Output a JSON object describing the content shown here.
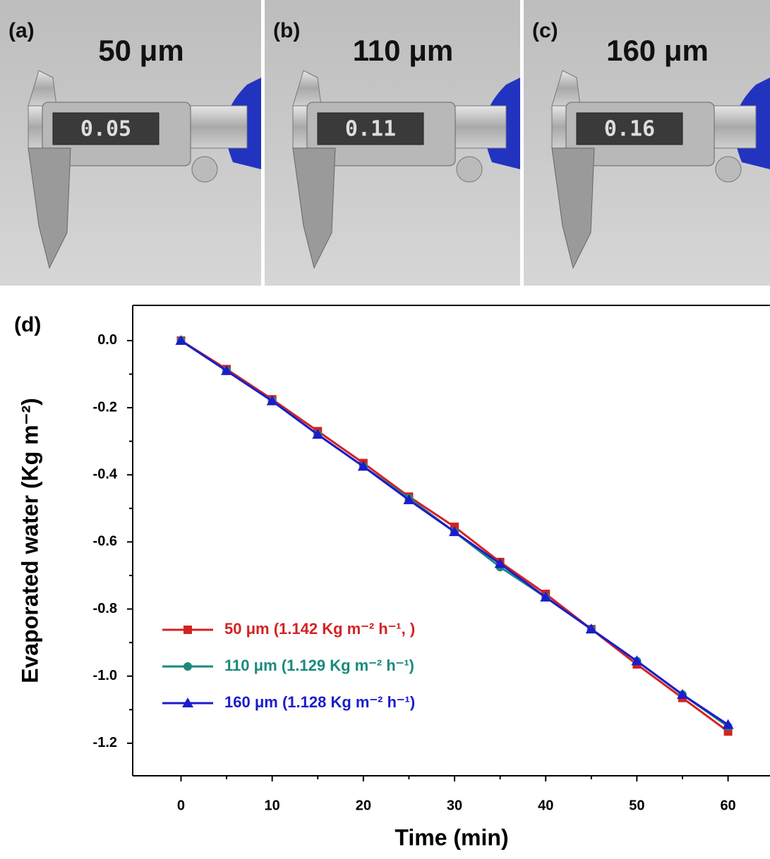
{
  "panels": [
    {
      "label": "(a)",
      "thickness": "50 μm",
      "display": "0.05"
    },
    {
      "label": "(b)",
      "thickness": "110 μm",
      "display": "0.11"
    },
    {
      "label": "(c)",
      "thickness": "160 μm",
      "display": "0.16"
    }
  ],
  "chart_data": {
    "type": "line",
    "panel_label": "(d)",
    "x_label": "Time (min)",
    "y_label": "Evaporated water (Kg m⁻²)",
    "x": [
      0,
      5,
      10,
      15,
      20,
      25,
      30,
      35,
      40,
      45,
      50,
      55,
      60
    ],
    "series": [
      {
        "name": "50 μm (1.142 Kg m⁻² h⁻¹, )",
        "color": "#d42222",
        "marker": "square",
        "values": [
          0,
          -0.085,
          -0.175,
          -0.27,
          -0.365,
          -0.465,
          -0.555,
          -0.66,
          -0.755,
          -0.86,
          -0.965,
          -1.065,
          -1.165
        ]
      },
      {
        "name": "110 μm (1.129 Kg m⁻² h⁻¹)",
        "color": "#1b8a7c",
        "marker": "circle",
        "values": [
          0,
          -0.09,
          -0.18,
          -0.28,
          -0.375,
          -0.47,
          -0.57,
          -0.675,
          -0.765,
          -0.86,
          -0.955,
          -1.055,
          -1.15
        ]
      },
      {
        "name": "160 μm (1.128 Kg m⁻² h⁻¹)",
        "color": "#1c1ccc",
        "marker": "triangle",
        "values": [
          0,
          -0.09,
          -0.18,
          -0.28,
          -0.375,
          -0.475,
          -0.57,
          -0.665,
          -0.765,
          -0.86,
          -0.955,
          -1.055,
          -1.145
        ]
      }
    ],
    "xlim": [
      -5.3,
      64.6
    ],
    "xticks": [
      0,
      10,
      20,
      30,
      40,
      50,
      60
    ],
    "ylim": [
      -1.297,
      0.105
    ],
    "yticks": [
      {
        "value": 0,
        "label": "0.0"
      },
      -0.2,
      -0.4,
      -0.6,
      -0.8,
      {
        "value": -1,
        "label": "-1.0"
      },
      -1.2
    ],
    "legend": "lower-left"
  }
}
